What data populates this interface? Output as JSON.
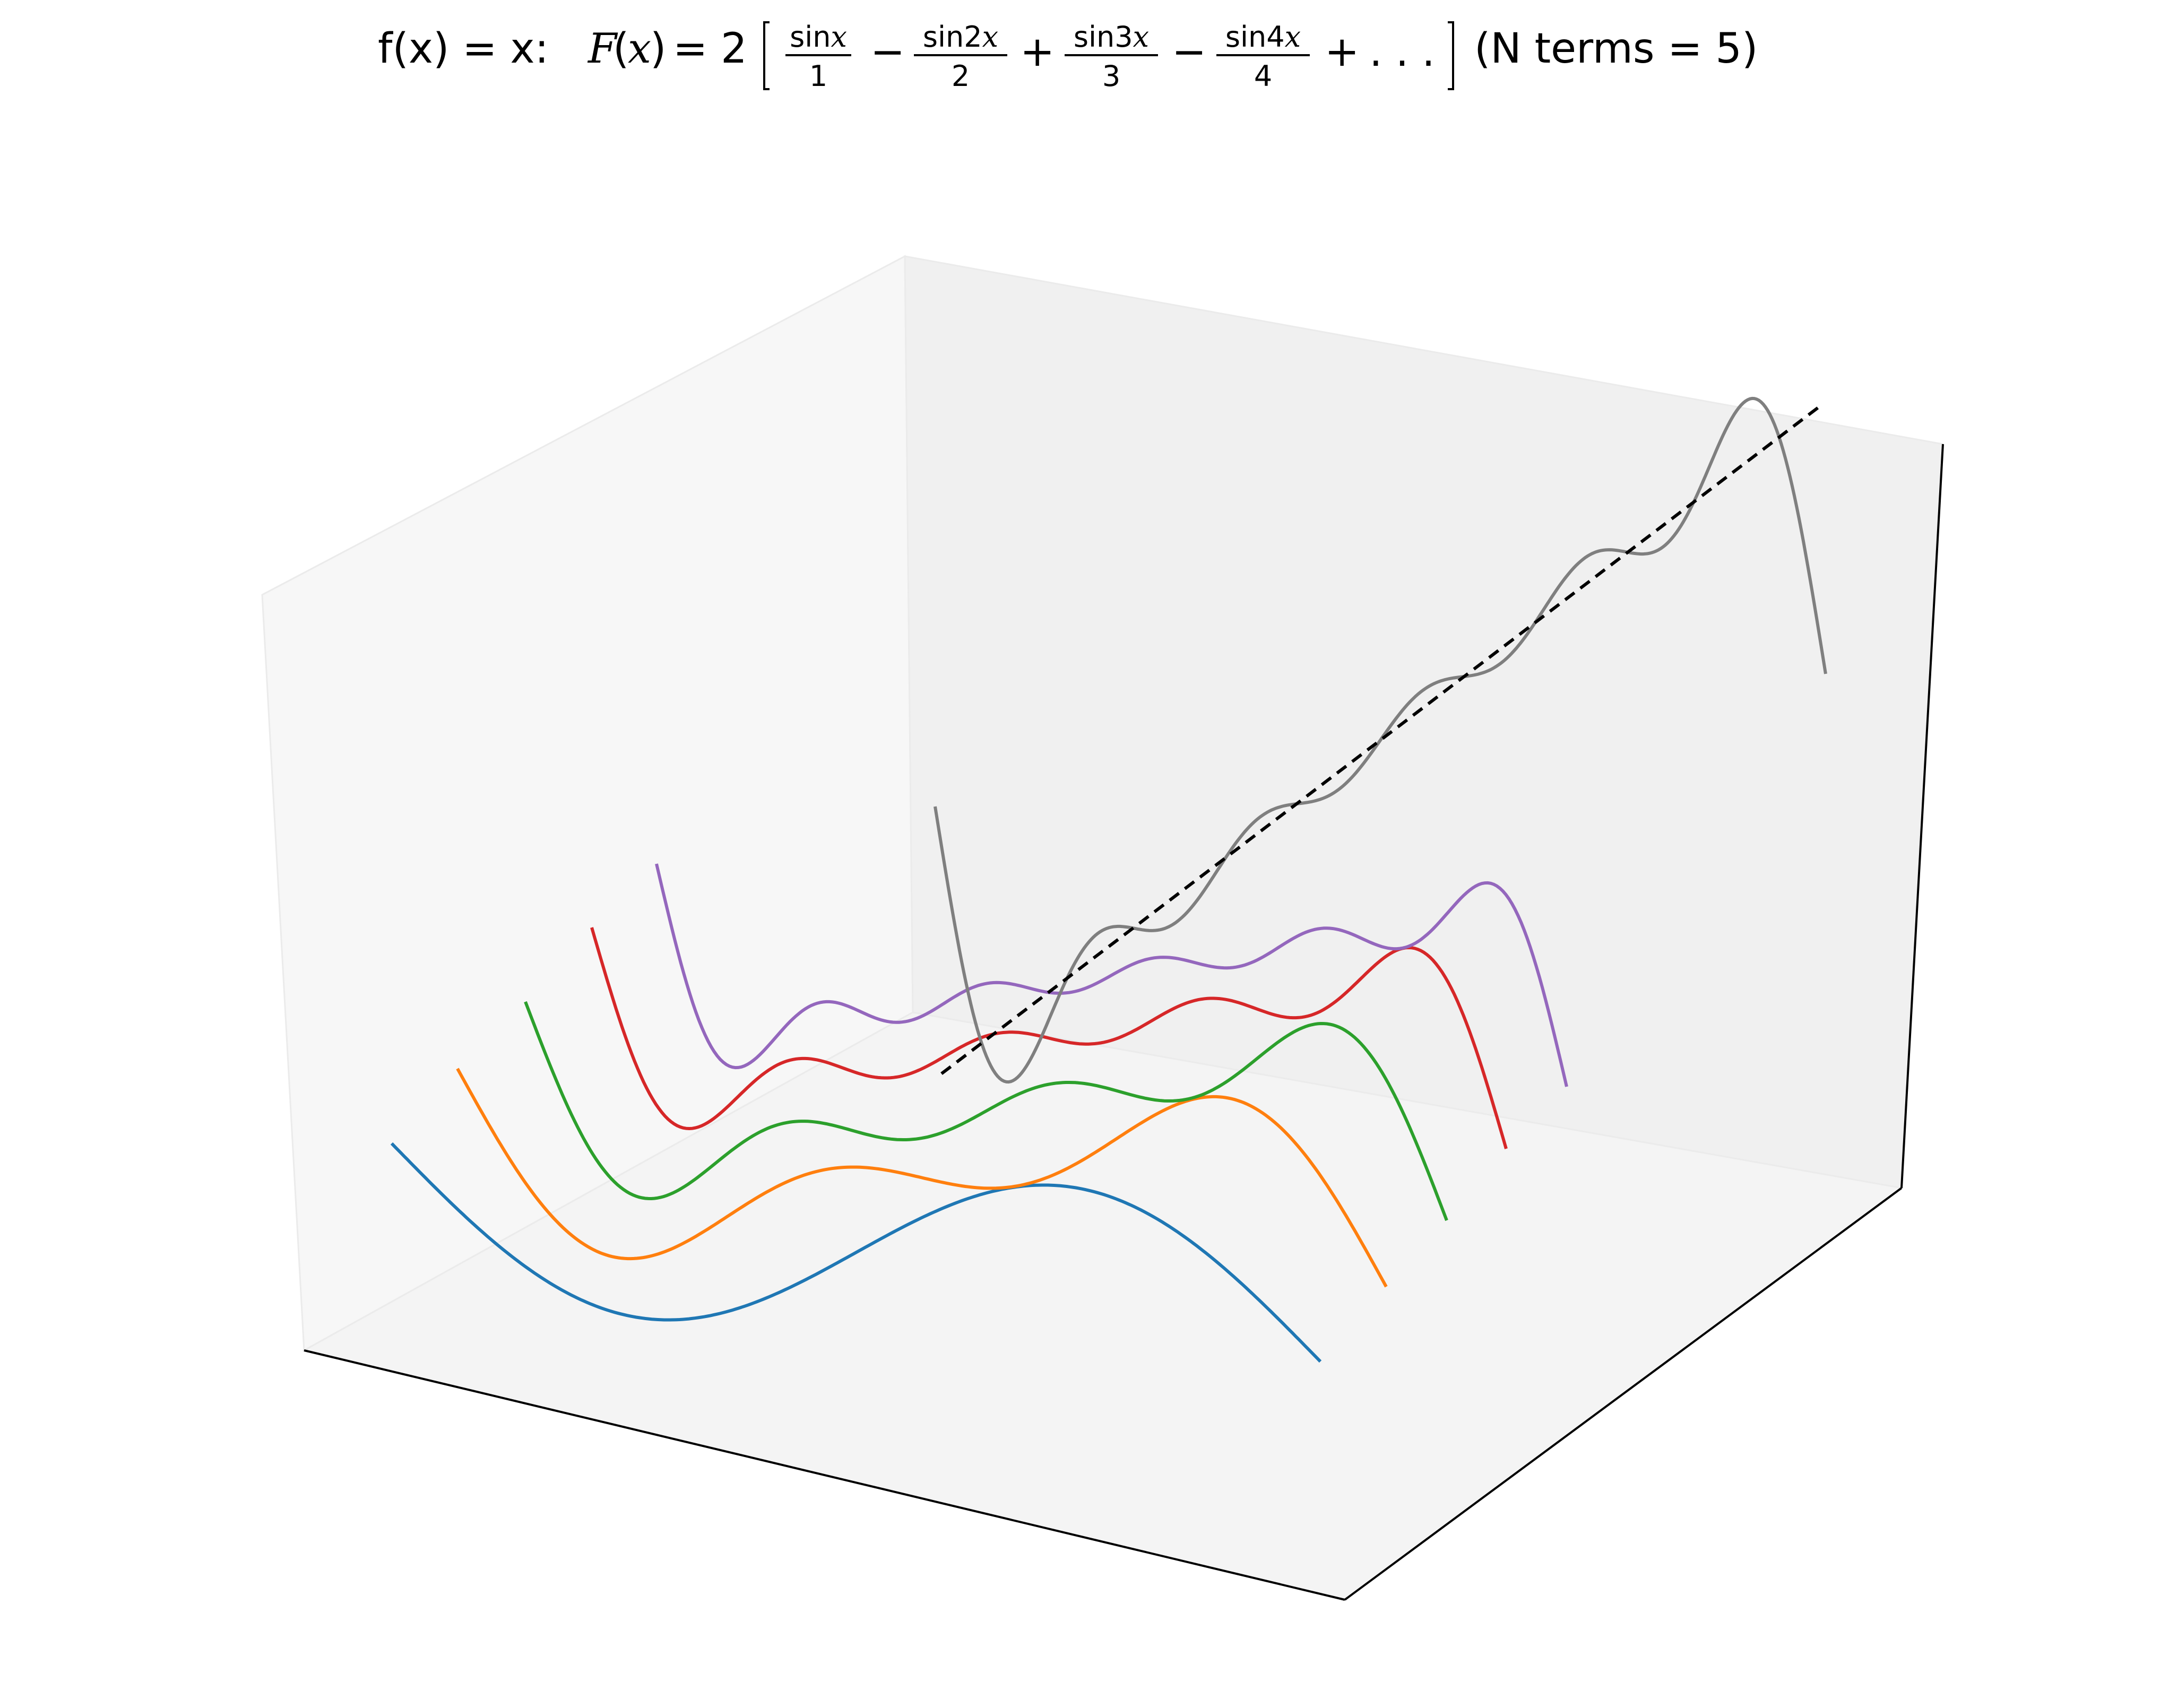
{
  "chart_data": {
    "type": "line",
    "title": {
      "prefix": "f(x) = x: ",
      "func_lhs": "F",
      "func_var": "x",
      "equals_two": "= 2",
      "fractions": [
        {
          "num": "sin",
          "num_var": "x",
          "den": "1"
        },
        {
          "num": "sin2",
          "num_var": "x",
          "den": "2"
        },
        {
          "num": "sin3",
          "num_var": "x",
          "den": "3"
        },
        {
          "num": "sin4",
          "num_var": "x",
          "den": "4"
        }
      ],
      "operators": [
        "−",
        "+",
        "−",
        "+"
      ],
      "ellipsis": ". . .",
      "suffix": "(N terms = 5)"
    },
    "x_range": [
      -3.14159,
      3.14159
    ],
    "partial_sum_terms": [
      1,
      2,
      3,
      4,
      5
    ],
    "series": [
      {
        "terms": 1,
        "color": "#1f77b4"
      },
      {
        "terms": 2,
        "color": "#ff7f0e"
      },
      {
        "terms": 3,
        "color": "#2ca02c"
      },
      {
        "terms": 4,
        "color": "#d62728"
      },
      {
        "terms": 5,
        "color": "#9467bd"
      }
    ],
    "sum_curve": {
      "terms": 5,
      "color": "#7f7f7f"
    },
    "target_function": {
      "expression": "f(x) = x",
      "color": "#000000",
      "style": "dashed"
    },
    "axes": {
      "ticks": "hidden",
      "grid": false,
      "pane_color": "#f2f2f2"
    }
  }
}
